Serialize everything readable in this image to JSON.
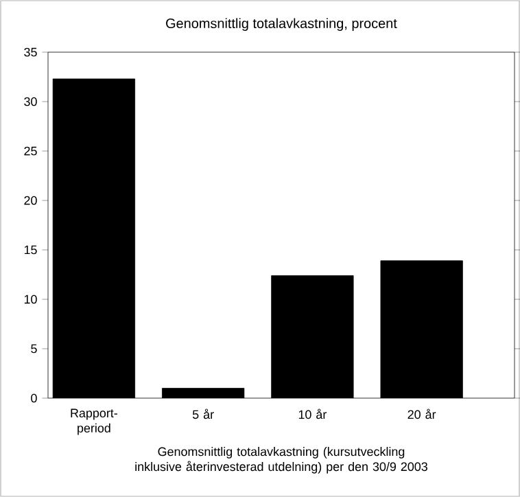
{
  "chart_data": {
    "type": "bar",
    "title": "Genomsnittlig totalavkastning, procent",
    "categories": [
      "Rapport-period",
      "5 år",
      "10 år",
      "20 år"
    ],
    "values": [
      32.3,
      1.0,
      12.4,
      13.9
    ],
    "color": "#000000",
    "ylim": [
      0,
      35
    ],
    "yticks": [
      0,
      5,
      10,
      15,
      20,
      25,
      30,
      35
    ],
    "grid": false,
    "annotations": [
      "Genomsnittlig totalavkastning (kursutveckling inklusive återinvesterad utdelning) per den 30/9 2003"
    ]
  }
}
